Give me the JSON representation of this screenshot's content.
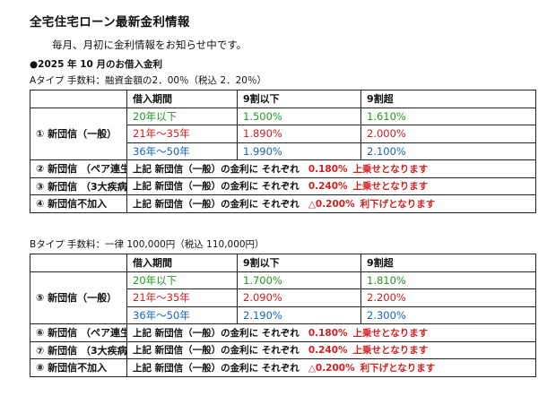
{
  "title": "全宅住宅ローン最新金利情報",
  "intro": "毎月、月初に金利情報をお知らせ中です。",
  "subtitle": "●2025 年 10 月のお借入金利",
  "header": {
    "period": "借入期間",
    "col_le90": "9割以下",
    "col_gt90": "9割超"
  },
  "typeA": {
    "label": "Aタイプ  手数料：融資金額の2．00％（税込 2．20％）",
    "ippan_label": "① 新団信（一般）",
    "rows": [
      {
        "period": "20年以下",
        "le90": "1.500%",
        "gt90": "1.610%"
      },
      {
        "period": "21年～35年",
        "le90": "1.890%",
        "gt90": "2.000%"
      },
      {
        "period": "36年～50年",
        "le90": "1.990%",
        "gt90": "2.100%"
      }
    ],
    "extras": [
      {
        "label": "② 新団信 （ペア連生）",
        "prefix": "上記  新団信（一般）の金利に  それぞれ",
        "value": "0.180%",
        "suffix": "上乗せとなります"
      },
      {
        "label": "③ 新団信 （3大疾病）",
        "prefix": "上記  新団信（一般）の金利に  それぞれ",
        "value": "0.240%",
        "suffix": "上乗せとなります"
      },
      {
        "label": "④ 新団信不加入",
        "prefix": "上記  新団信（一般）の金利に  それぞれ",
        "value": "△0.200%",
        "suffix": "利下げとなります"
      }
    ]
  },
  "typeB": {
    "label": "Bタイプ  手数料：一律  100,000円（税込  110,000円）",
    "ippan_label": "⑤ 新団信（一般）",
    "rows": [
      {
        "period": "20年以下",
        "le90": "1.700%",
        "gt90": "1.810%"
      },
      {
        "period": "21年～35年",
        "le90": "2.090%",
        "gt90": "2.200%"
      },
      {
        "period": "36年～50年",
        "le90": "2.190%",
        "gt90": "2.300%"
      }
    ],
    "extras": [
      {
        "label": "⑥ 新団信 （ペア連生）",
        "prefix": "上記  新団信（一般）の金利に  それぞれ",
        "value": "0.180%",
        "suffix": "上乗せとなります"
      },
      {
        "label": "⑦ 新団信 （3大疾病）",
        "prefix": "上記  新団信（一般）の金利に  それぞれ",
        "value": "0.240%",
        "suffix": "上乗せとなります"
      },
      {
        "label": "⑧ 新団信不加入",
        "prefix": "上記  新団信（一般）の金利に  それぞれ",
        "value": "△0.200%",
        "suffix": "利下げとなります"
      }
    ]
  },
  "colors": {
    "green": "#1f9a1f",
    "red": "#d41d1d",
    "blue": "#1565c0"
  }
}
